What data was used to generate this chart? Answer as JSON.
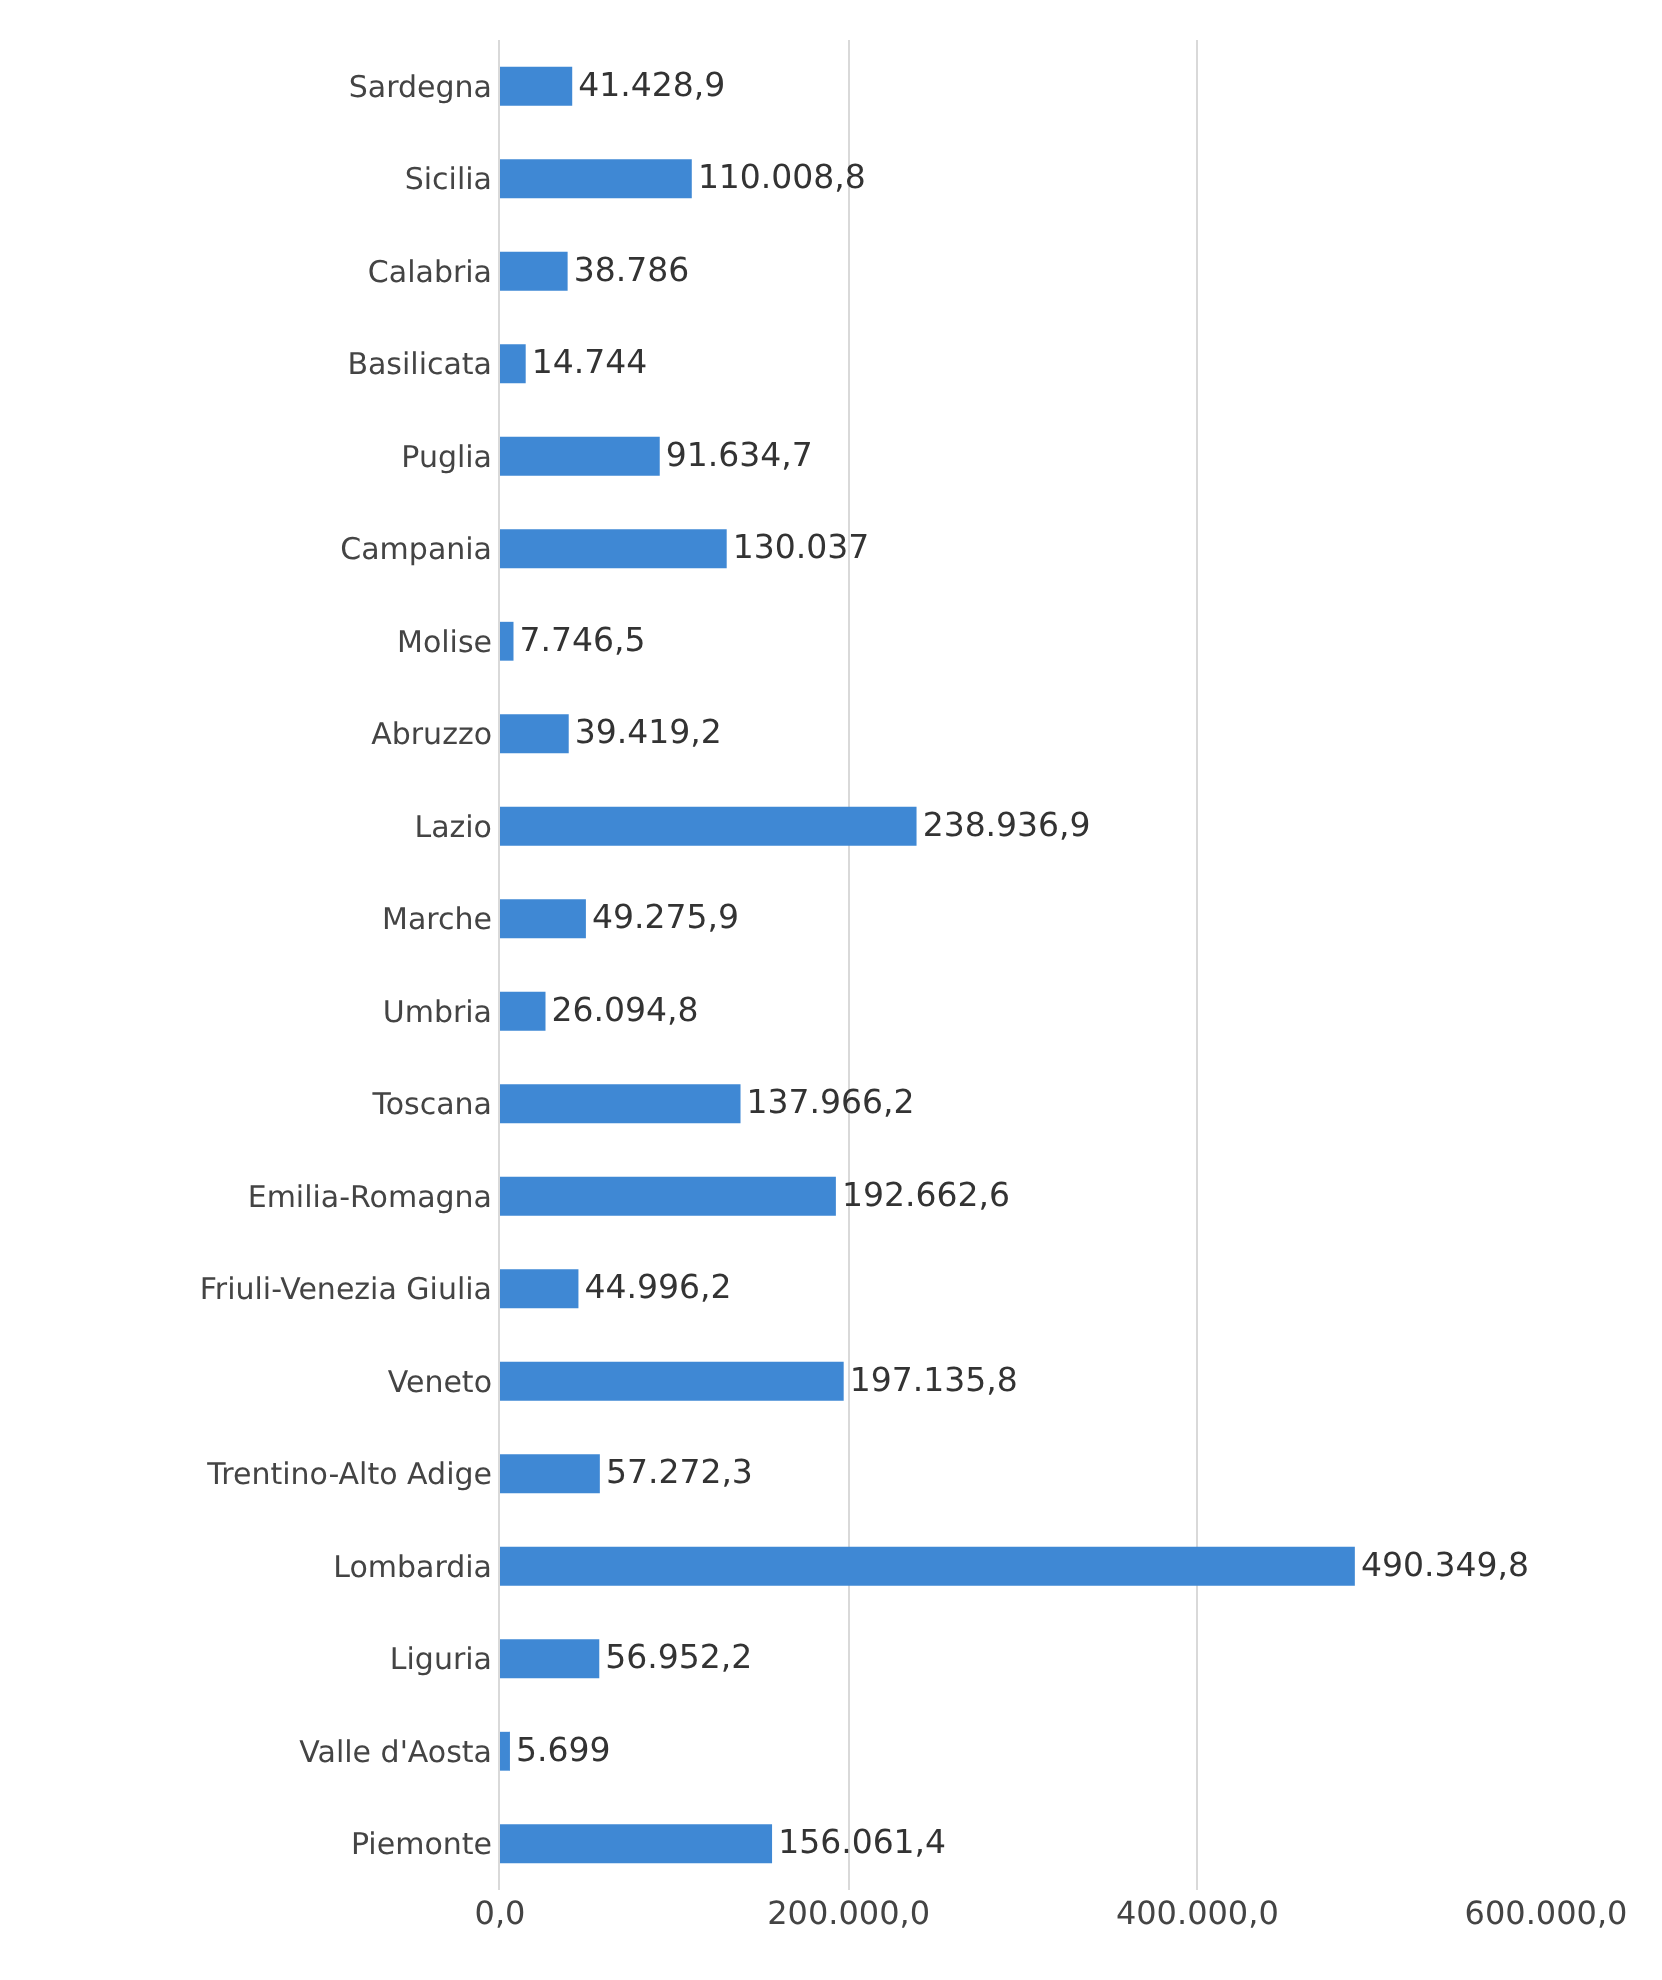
{
  "chart_data": {
    "type": "bar",
    "orientation": "horizontal",
    "categories": [
      "Sardegna",
      "Sicilia",
      "Calabria",
      "Basilicata",
      "Puglia",
      "Campania",
      "Molise",
      "Abruzzo",
      "Lazio",
      "Marche",
      "Umbria",
      "Toscana",
      "Emilia-Romagna",
      "Friuli-Venezia Giulia",
      "Veneto",
      "Trentino-Alto Adige",
      "Lombardia",
      "Liguria",
      "Valle d'Aosta",
      "Piemonte"
    ],
    "values": [
      41428.9,
      110008.8,
      38786,
      14744,
      91634.7,
      130037,
      7746.5,
      39419.2,
      238936.9,
      49275.9,
      26094.8,
      137966.2,
      192662.6,
      44996.2,
      197135.8,
      57272.3,
      490349.8,
      56952.2,
      5699,
      156061.4
    ],
    "value_labels": [
      "41.428,9",
      "110.008,8",
      "38.786",
      "14.744",
      "91.634,7",
      "130.037",
      "7.746,5",
      "39.419,2",
      "238.936,9",
      "49.275,9",
      "26.094,8",
      "137.966,2",
      "192.662,6",
      "44.996,2",
      "197.135,8",
      "57.272,3",
      "490.349,8",
      "56.952,2",
      "5.699",
      "156.061,4"
    ],
    "color": "#3f88d4",
    "xlim": [
      0,
      600000
    ],
    "xticks": [
      {
        "value": 0,
        "label": "0,0"
      },
      {
        "value": 200000,
        "label": "200.000,0"
      },
      {
        "value": 400000,
        "label": "400.000,0"
      },
      {
        "value": 600000,
        "label": "600.000,0"
      }
    ],
    "grid": "x"
  }
}
